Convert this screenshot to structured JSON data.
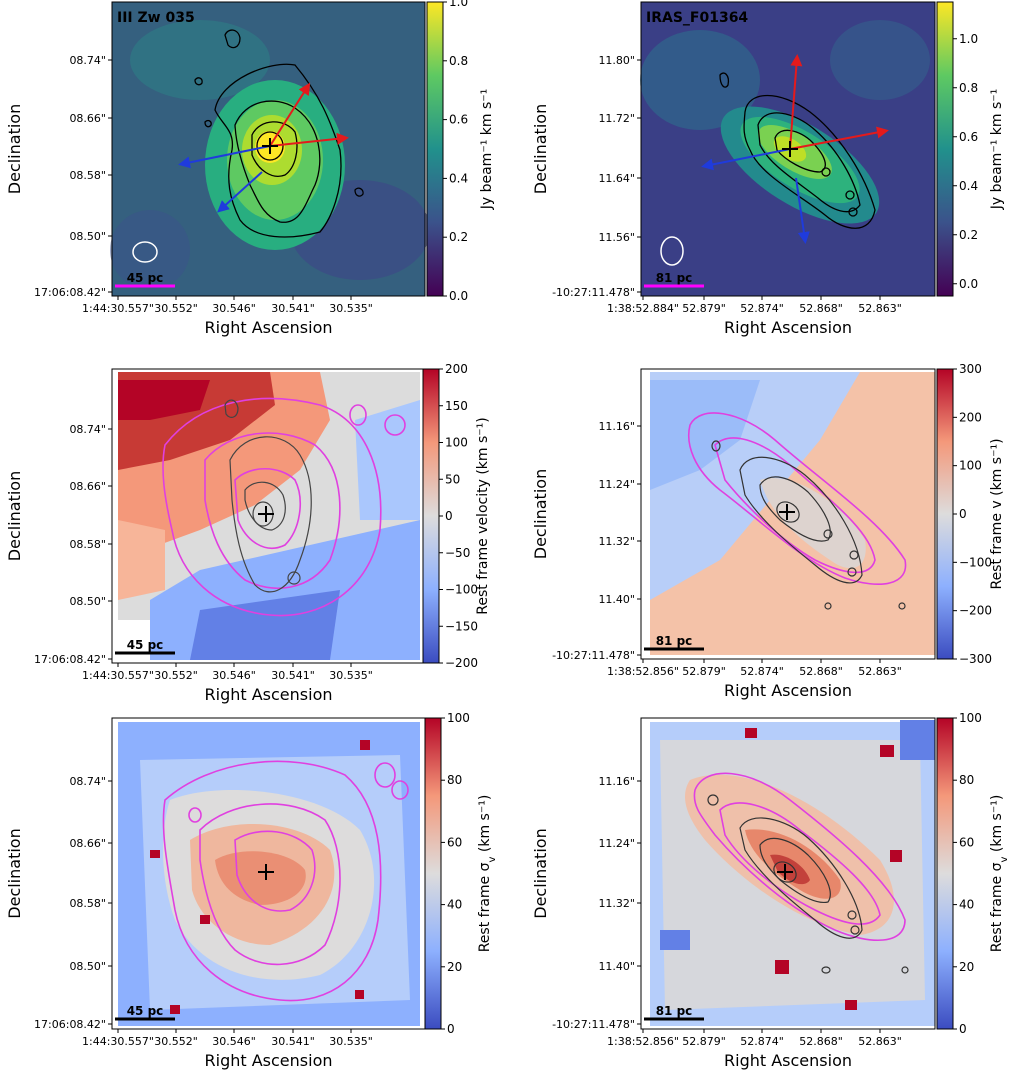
{
  "chart_data": [
    {
      "type": "heatmap",
      "title": "III Zw 035",
      "xlabel": "Right Ascension",
      "ylabel": "Declination",
      "xticks": [
        "1:44:30.557\"",
        "30.552\"",
        "30.546\"",
        "30.541\"",
        "30.535\""
      ],
      "yticks": [
        "17:06:08.42\"",
        "08.50\"",
        "08.58\"",
        "08.66\"",
        "08.74\""
      ],
      "scalebar": "45 pc",
      "colormap": "viridis",
      "colorbar": {
        "label": "Jy beam⁻¹ km s⁻¹",
        "ticks": [
          "0.0",
          "0.2",
          "0.4",
          "0.6",
          "0.8",
          "1.0"
        ],
        "range": [
          0.0,
          1.0
        ]
      },
      "arrow_colors": [
        "red",
        "red",
        "blue",
        "blue"
      ],
      "beam": true,
      "contours": "black"
    },
    {
      "type": "heatmap",
      "title": "IRAS_F01364",
      "xlabel": "Right Ascension",
      "ylabel": "Declination",
      "xticks": [
        "1:38:52.884\"",
        "52.879\"",
        "52.874\"",
        "52.868\"",
        "52.863\""
      ],
      "yticks": [
        "-10:27:11.478\"",
        "11.56\"",
        "11.64\"",
        "11.72\"",
        "11.80\""
      ],
      "scalebar": "81 pc",
      "colormap": "viridis",
      "colorbar": {
        "label": "Jy beam⁻¹ km s⁻¹",
        "ticks": [
          "0.0",
          "0.2",
          "0.4",
          "0.6",
          "0.8",
          "1.0"
        ],
        "range": [
          -0.05,
          1.15
        ]
      },
      "arrow_colors": [
        "red",
        "red",
        "blue",
        "blue"
      ],
      "beam": true,
      "contours": "black"
    },
    {
      "type": "heatmap",
      "title": "",
      "xlabel": "Right Ascension",
      "ylabel": "Declination",
      "xticks": [
        "1:44:30.557\"",
        "30.552\"",
        "30.546\"",
        "30.541\"",
        "30.535\""
      ],
      "yticks": [
        "17:06:08.42\"",
        "08.50\"",
        "08.58\"",
        "08.66\"",
        "08.74\""
      ],
      "scalebar": "45 pc",
      "colormap": "coolwarm",
      "colorbar": {
        "label": "Rest frame velocity (km s⁻¹)",
        "ticks": [
          "−200",
          "−150",
          "−100",
          "−50",
          "0",
          "50",
          "100",
          "150",
          "200"
        ],
        "range": [
          -200,
          200
        ]
      },
      "contours": "black and magenta"
    },
    {
      "type": "heatmap",
      "title": "",
      "xlabel": "Right Ascension",
      "ylabel": "Declination",
      "xticks": [
        "1:38:52.856\"",
        "52.879\"",
        "52.874\"",
        "52.868\"",
        "52.863\""
      ],
      "yticks": [
        "-10:27:11.478\"",
        "11.40\"",
        "11.32\"",
        "11.24\"",
        "11.16\""
      ],
      "scalebar": "81 pc",
      "colormap": "coolwarm",
      "colorbar": {
        "label": "Rest frame v (km s⁻¹)",
        "ticks": [
          "−300",
          "−200",
          "−100",
          "0",
          "100",
          "200",
          "300"
        ],
        "range": [
          -300,
          300
        ]
      },
      "contours": "black and magenta"
    },
    {
      "type": "heatmap",
      "title": "",
      "xlabel": "Right Ascension",
      "ylabel": "Declination",
      "xticks": [
        "1:44:30.557\"",
        "30.552\"",
        "30.546\"",
        "30.541\"",
        "30.535\""
      ],
      "yticks": [
        "17:06:08.42\"",
        "08.50\"",
        "08.58\"",
        "08.66\"",
        "08.74\""
      ],
      "scalebar": "45 pc",
      "colormap": "coolwarm",
      "colorbar": {
        "label": "Rest frame σ",
        "label_sub": "v",
        "label_unit": " (km s⁻¹)",
        "ticks": [
          "0",
          "20",
          "40",
          "60",
          "80",
          "100"
        ],
        "range": [
          0,
          100
        ]
      },
      "contours": "magenta"
    },
    {
      "type": "heatmap",
      "title": "",
      "xlabel": "Right Ascension",
      "ylabel": "Declination",
      "xticks": [
        "1:38:52.856\"",
        "52.879\"",
        "52.874\"",
        "52.868\"",
        "52.863\""
      ],
      "yticks": [
        "-10:27:11.478\"",
        "11.40\"",
        "11.32\"",
        "11.24\"",
        "11.16\""
      ],
      "scalebar": "81 pc",
      "colormap": "coolwarm",
      "colorbar": {
        "label": "Rest frame σ",
        "label_sub": "v",
        "label_unit": " (km s⁻¹)",
        "ticks": [
          "0",
          "20",
          "40",
          "60",
          "80",
          "100"
        ],
        "range": [
          0,
          100
        ]
      },
      "contours": "black and magenta"
    }
  ]
}
